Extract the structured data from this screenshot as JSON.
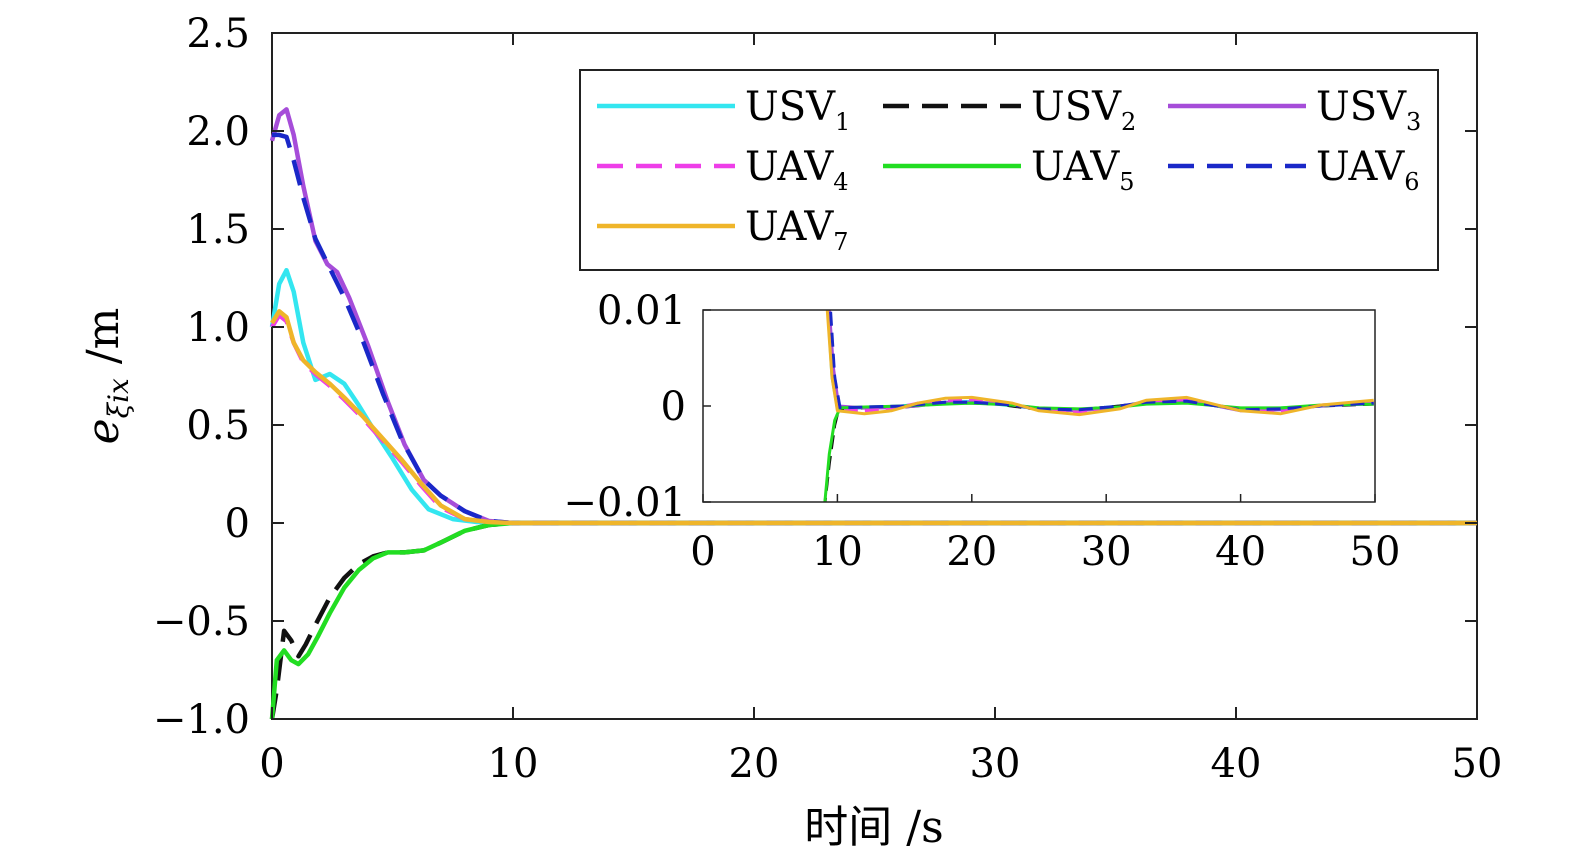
{
  "chart_data": {
    "type": "line",
    "xlabel": "时间 /s",
    "ylabel": {
      "main": "e",
      "sub": "ξix",
      "unit": " /m"
    },
    "xlim": [
      0,
      50
    ],
    "ylim": [
      -1.0,
      2.5
    ],
    "xticks": [
      0,
      10,
      20,
      30,
      40,
      50
    ],
    "xtick_labels": [
      "0",
      "10",
      "20",
      "30",
      "40",
      "50"
    ],
    "yticks": [
      -1.0,
      -0.5,
      0,
      0.5,
      1.0,
      1.5,
      2.0,
      2.5
    ],
    "ytick_labels": [
      "−1.0",
      "−0.5",
      "0",
      "0.5",
      "1.0",
      "1.5",
      "2.0",
      "2.5"
    ],
    "grid": false,
    "legend_placement": "top-right",
    "series": [
      {
        "base": "USV",
        "sub": "1",
        "color": "#33e6f0",
        "dash": "solid",
        "x": [
          0,
          0.3,
          0.6,
          0.9,
          1.3,
          1.8,
          2.4,
          3.0,
          3.6,
          4.2,
          5.0,
          5.8,
          6.5,
          7.5,
          8.5,
          9.5,
          10,
          50
        ],
        "y": [
          1.0,
          1.22,
          1.29,
          1.18,
          0.92,
          0.73,
          0.76,
          0.71,
          0.6,
          0.48,
          0.33,
          0.17,
          0.07,
          0.02,
          0.005,
          0.0,
          0.0,
          0.0
        ]
      },
      {
        "base": "USV",
        "sub": "2",
        "color": "#111111",
        "dash": "dashed",
        "x": [
          0,
          0.2,
          0.5,
          0.8,
          1.1,
          1.4,
          1.8,
          2.4,
          3.0,
          3.6,
          4.2,
          4.8,
          5.5,
          6.3,
          7.0,
          8.0,
          9.0,
          10,
          50
        ],
        "y": [
          -1.0,
          -0.85,
          -0.55,
          -0.6,
          -0.68,
          -0.62,
          -0.52,
          -0.38,
          -0.28,
          -0.21,
          -0.17,
          -0.15,
          -0.15,
          -0.14,
          -0.1,
          -0.04,
          -0.01,
          0.0,
          0.0
        ]
      },
      {
        "base": "USV",
        "sub": "3",
        "color": "#a64dd9",
        "dash": "solid",
        "x": [
          0,
          0.3,
          0.6,
          0.9,
          1.3,
          1.8,
          2.3,
          2.7,
          3.2,
          4.0,
          4.8,
          5.5,
          6.3,
          7.0,
          8.0,
          9.0,
          10,
          50
        ],
        "y": [
          1.95,
          2.08,
          2.11,
          1.98,
          1.72,
          1.44,
          1.32,
          1.28,
          1.15,
          0.9,
          0.62,
          0.4,
          0.22,
          0.14,
          0.06,
          0.01,
          0.0,
          0.0
        ]
      },
      {
        "base": "UAV",
        "sub": "4",
        "color": "#ee3ee8",
        "dash": "dashed",
        "x": [
          0,
          0.3,
          0.6,
          0.9,
          1.3,
          1.8,
          2.4,
          3.0,
          3.8,
          4.6,
          5.4,
          6.2,
          7.0,
          8.0,
          9.0,
          10,
          50
        ],
        "y": [
          1.0,
          1.06,
          1.03,
          0.92,
          0.82,
          0.76,
          0.7,
          0.63,
          0.53,
          0.42,
          0.31,
          0.19,
          0.08,
          0.02,
          0.005,
          0.0,
          0.0
        ]
      },
      {
        "base": "UAV",
        "sub": "5",
        "color": "#22dd22",
        "dash": "solid",
        "x": [
          0,
          0.2,
          0.5,
          0.8,
          1.1,
          1.5,
          1.9,
          2.4,
          3.0,
          3.6,
          4.2,
          4.8,
          5.5,
          6.3,
          7.0,
          8.0,
          9.0,
          10,
          50
        ],
        "y": [
          -1.0,
          -0.7,
          -0.65,
          -0.7,
          -0.72,
          -0.67,
          -0.58,
          -0.46,
          -0.33,
          -0.24,
          -0.18,
          -0.15,
          -0.15,
          -0.14,
          -0.1,
          -0.04,
          -0.01,
          0.0,
          0.0
        ]
      },
      {
        "base": "UAV",
        "sub": "6",
        "color": "#1a28c8",
        "dash": "dashed",
        "x": [
          0,
          0.3,
          0.6,
          0.9,
          1.3,
          1.8,
          2.4,
          3.0,
          3.8,
          4.6,
          5.4,
          6.3,
          7.0,
          8.0,
          9.0,
          10,
          50
        ],
        "y": [
          1.98,
          1.98,
          1.97,
          1.85,
          1.66,
          1.45,
          1.3,
          1.15,
          0.92,
          0.66,
          0.42,
          0.22,
          0.14,
          0.06,
          0.01,
          0.0,
          0.0
        ]
      },
      {
        "base": "UAV",
        "sub": "7",
        "color": "#efb52a",
        "dash": "solid",
        "x": [
          0,
          0.3,
          0.6,
          0.9,
          1.3,
          1.8,
          2.4,
          3.0,
          3.8,
          4.6,
          5.4,
          6.2,
          7.0,
          8.0,
          9.0,
          10,
          50
        ],
        "y": [
          1.02,
          1.08,
          1.05,
          0.92,
          0.83,
          0.77,
          0.71,
          0.64,
          0.54,
          0.43,
          0.32,
          0.2,
          0.09,
          0.02,
          0.005,
          0.0,
          0.0
        ]
      }
    ],
    "inset": {
      "xlim": [
        0,
        50
      ],
      "ylim": [
        -0.01,
        0.01
      ],
      "xticks": [
        0,
        10,
        20,
        30,
        40,
        50
      ],
      "xtick_labels": [
        "0",
        "10",
        "20",
        "30",
        "40",
        "50"
      ],
      "yticks": [
        -0.01,
        0,
        0.01
      ],
      "ytick_labels": [
        "−0.01",
        "0",
        "0.01"
      ],
      "series": [
        {
          "color": "#33e6f0",
          "dash": "solid",
          "x": [
            9.2,
            9.6,
            10.0,
            12,
            14,
            16,
            18,
            20,
            23,
            25,
            28,
            31,
            33,
            36,
            40,
            43,
            46,
            49.9
          ],
          "y": [
            0.012,
            0.003,
            -0.0003,
            -0.0002,
            -0.0001,
            0.0002,
            0.0004,
            0.0005,
            0.0,
            -0.0003,
            -0.0004,
            0.0,
            0.0003,
            0.0004,
            -0.0003,
            -0.0002,
            0.0,
            0.0003
          ]
        },
        {
          "color": "#111111",
          "dash": "dashed",
          "x": [
            9.0,
            9.4,
            9.8,
            10.1,
            12,
            15,
            18,
            20,
            22,
            24,
            26,
            28,
            31,
            33,
            36,
            40,
            43,
            46,
            49.9
          ],
          "y": [
            -0.011,
            -0.006,
            -0.002,
            -0.0003,
            -0.0002,
            -0.0001,
            0.0003,
            0.0003,
            0.0002,
            -0.0002,
            -0.0005,
            -0.0004,
            0.0,
            0.0004,
            0.0005,
            -0.0004,
            -0.0003,
            0.0,
            0.0002
          ]
        },
        {
          "color": "#a64dd9",
          "dash": "solid",
          "x": [
            9.3,
            9.7,
            10.1,
            12,
            14,
            16,
            18,
            20,
            22,
            23.5,
            25,
            28,
            31,
            33,
            36,
            40,
            43,
            46,
            49.9
          ],
          "y": [
            0.012,
            0.004,
            0.0,
            -0.0002,
            -0.0002,
            0.0,
            0.0004,
            0.0004,
            0.0003,
            0.0,
            -0.0004,
            -0.0005,
            -0.0001,
            0.0004,
            0.0006,
            -0.0005,
            -0.0004,
            0.0,
            0.0004
          ]
        },
        {
          "color": "#ee3ee8",
          "dash": "dashed",
          "x": [
            9.2,
            9.6,
            10.0,
            12,
            14,
            16,
            18,
            20,
            23,
            25,
            28,
            31,
            33,
            36,
            40,
            43,
            46,
            49.9
          ],
          "y": [
            0.012,
            0.004,
            -0.0004,
            -0.0005,
            -0.0003,
            0.0003,
            0.0006,
            0.0007,
            0.0002,
            -0.0004,
            -0.0006,
            -0.0001,
            0.0005,
            0.0007,
            -0.0004,
            -0.0006,
            0.0001,
            0.0004
          ]
        },
        {
          "color": "#22dd22",
          "dash": "solid",
          "x": [
            9.0,
            9.4,
            9.8,
            10.2,
            12,
            15,
            18,
            20,
            23,
            25,
            28,
            31,
            33,
            36,
            40,
            43,
            46,
            49.9
          ],
          "y": [
            -0.011,
            -0.005,
            -0.0015,
            -0.0002,
            -0.0001,
            0.0,
            0.0002,
            0.0003,
            0.0001,
            -0.0002,
            -0.0003,
            -0.0001,
            0.0002,
            0.0003,
            -0.0002,
            -0.0002,
            0.0001,
            0.0002
          ]
        },
        {
          "color": "#1a28c8",
          "dash": "dashed",
          "x": [
            9.4,
            9.8,
            10.2,
            12,
            15,
            18,
            20,
            23,
            25,
            28,
            31,
            33,
            36,
            40,
            43,
            46,
            49.9
          ],
          "y": [
            0.012,
            0.003,
            -0.0002,
            -0.0001,
            0.0,
            0.0004,
            0.0004,
            0.0001,
            -0.0003,
            -0.0004,
            0.0,
            0.0004,
            0.0005,
            -0.0004,
            -0.0003,
            0.0,
            0.0003
          ]
        },
        {
          "color": "#efb52a",
          "dash": "solid",
          "x": [
            9.2,
            9.6,
            10.0,
            12,
            14,
            16,
            18,
            20,
            23,
            25,
            28,
            31,
            33,
            36,
            40,
            43,
            46,
            49.9
          ],
          "y": [
            0.011,
            0.003,
            -0.0005,
            -0.0008,
            -0.0005,
            0.0003,
            0.0008,
            0.0009,
            0.0003,
            -0.0005,
            -0.0009,
            -0.0003,
            0.0006,
            0.0009,
            -0.0005,
            -0.0008,
            0.0001,
            0.0006
          ]
        }
      ]
    }
  }
}
